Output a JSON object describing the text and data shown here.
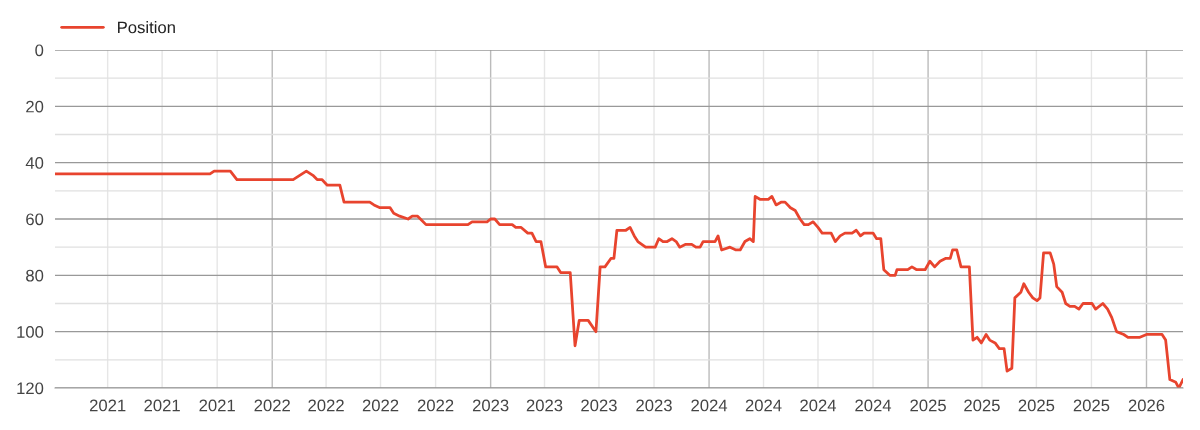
{
  "chart_data": {
    "type": "line",
    "legend": "top left",
    "grid": true,
    "xlim": [
      "2021-01-03",
      "2026-03-03"
    ],
    "xticks": [
      {
        "value": "2021-04-01",
        "label": "2021"
      },
      {
        "value": "2021-07-01",
        "label": "2021"
      },
      {
        "value": "2021-10-01",
        "label": "2021"
      },
      {
        "value": "2022-01-01",
        "label": "2022"
      },
      {
        "value": "2022-04-01",
        "label": "2022"
      },
      {
        "value": "2022-07-01",
        "label": "2022"
      },
      {
        "value": "2022-10-01",
        "label": "2022"
      },
      {
        "value": "2023-01-01",
        "label": "2023"
      },
      {
        "value": "2023-04-01",
        "label": "2023"
      },
      {
        "value": "2023-07-01",
        "label": "2023"
      },
      {
        "value": "2023-10-01",
        "label": "2023"
      },
      {
        "value": "2024-01-01",
        "label": "2024"
      },
      {
        "value": "2024-04-01",
        "label": "2024"
      },
      {
        "value": "2024-07-01",
        "label": "2024"
      },
      {
        "value": "2024-10-01",
        "label": "2024"
      },
      {
        "value": "2025-01-01",
        "label": "2025"
      },
      {
        "value": "2025-04-01",
        "label": "2025"
      },
      {
        "value": "2025-07-01",
        "label": "2025"
      },
      {
        "value": "2025-10-01",
        "label": "2025"
      },
      {
        "value": "2026-01-01",
        "label": "2026"
      }
    ],
    "ylim": [
      120,
      0
    ],
    "yticks": [
      0,
      {
        "value": 10,
        "label": null
      },
      20,
      {
        "value": 30,
        "label": null
      },
      40,
      {
        "value": 50,
        "label": null
      },
      60,
      {
        "value": 70,
        "label": null
      },
      80,
      {
        "value": 90,
        "label": null
      },
      100,
      {
        "value": 110,
        "label": null
      },
      120
    ],
    "series": [
      {
        "name": "Position",
        "color": "#e8442e",
        "x": [
          "2021-01-03",
          "2021-09-19",
          "2021-09-26",
          "2021-10-23",
          "2021-11-03",
          "2022-02-05",
          "2022-02-27",
          "2022-03-10",
          "2022-03-17",
          "2022-03-25",
          "2022-04-03",
          "2022-04-24",
          "2022-05-01",
          "2022-06-13",
          "2022-06-20",
          "2022-06-30",
          "2022-07-17",
          "2022-07-23",
          "2022-08-02",
          "2022-08-16",
          "2022-08-23",
          "2022-09-01",
          "2022-09-15",
          "2022-11-24",
          "2022-12-01",
          "2022-12-26",
          "2023-01-01",
          "2023-01-08",
          "2023-01-16",
          "2023-02-06",
          "2023-02-12",
          "2023-02-21",
          "2023-03-04",
          "2023-03-11",
          "2023-03-18",
          "2023-03-26",
          "2023-04-03",
          "2023-04-22",
          "2023-04-28",
          "2023-05-14",
          "2023-05-22",
          "2023-05-29",
          "2023-06-13",
          "2023-06-26",
          "2023-07-03",
          "2023-07-11",
          "2023-07-21",
          "2023-07-26",
          "2023-07-31",
          "2023-08-15",
          "2023-08-22",
          "2023-08-29",
          "2023-09-04",
          "2023-09-17",
          "2023-10-03",
          "2023-10-09",
          "2023-10-16",
          "2023-10-23",
          "2023-10-31",
          "2023-11-07",
          "2023-11-13",
          "2023-11-23",
          "2023-12-03",
          "2023-12-10",
          "2023-12-17",
          "2023-12-22",
          "2024-01-11",
          "2024-01-16",
          "2024-01-22",
          "2024-02-05",
          "2024-02-15",
          "2024-02-22",
          "2024-03-01",
          "2024-03-09",
          "2024-03-15",
          "2024-03-18",
          "2024-03-26",
          "2024-04-09",
          "2024-04-15",
          "2024-04-22",
          "2024-05-01",
          "2024-05-07",
          "2024-05-16",
          "2024-05-24",
          "2024-06-01",
          "2024-06-08",
          "2024-06-15",
          "2024-06-23",
          "2024-07-01",
          "2024-07-08",
          "2024-07-23",
          "2024-07-30",
          "2024-08-07",
          "2024-08-15",
          "2024-08-27",
          "2024-09-03",
          "2024-09-10",
          "2024-09-16",
          "2024-10-01",
          "2024-10-07",
          "2024-10-14",
          "2024-10-19",
          "2024-10-29",
          "2024-11-07",
          "2024-11-10",
          "2024-11-28",
          "2024-12-05",
          "2024-12-13",
          "2024-12-27",
          "2025-01-04",
          "2025-01-12",
          "2025-01-21",
          "2025-01-30",
          "2025-02-07",
          "2025-02-11",
          "2025-02-18",
          "2025-02-25",
          "2025-03-11",
          "2025-03-17",
          "2025-03-24",
          "2025-03-31",
          "2025-04-08",
          "2025-04-14",
          "2025-04-23",
          "2025-04-30",
          "2025-05-08",
          "2025-05-13",
          "2025-05-21",
          "2025-05-26",
          "2025-06-05",
          "2025-06-10",
          "2025-06-18",
          "2025-06-25",
          "2025-07-02",
          "2025-07-07",
          "2025-07-13",
          "2025-07-24",
          "2025-07-30",
          "2025-08-04",
          "2025-08-13",
          "2025-08-19",
          "2025-08-26",
          "2025-09-03",
          "2025-09-10",
          "2025-09-17",
          "2025-10-02",
          "2025-10-08",
          "2025-10-20",
          "2025-10-28",
          "2025-11-04",
          "2025-11-12",
          "2025-11-24",
          "2025-12-01",
          "2025-12-21",
          "2026-01-01",
          "2026-01-27",
          "2026-02-02",
          "2026-02-09",
          "2026-02-19",
          "2026-02-24",
          "2026-03-03"
        ],
        "values": [
          44,
          44,
          43,
          43,
          46,
          46,
          43,
          44.5,
          46,
          46,
          48,
          48,
          54,
          54,
          55,
          56,
          56,
          58,
          59,
          60,
          59,
          59,
          62,
          62,
          61,
          61,
          60,
          60,
          62,
          62,
          63,
          63,
          65,
          65,
          68,
          68,
          77,
          77,
          79,
          79,
          105,
          96,
          96,
          100,
          77,
          77,
          74,
          74,
          64,
          64,
          63,
          66,
          68,
          70,
          70,
          67,
          68,
          68,
          67,
          68,
          70,
          69,
          69,
          70,
          70,
          68,
          68,
          66,
          71,
          70,
          71,
          71,
          68,
          67,
          68,
          52,
          53,
          53,
          52,
          55,
          54,
          54,
          56,
          57,
          60,
          62,
          62,
          61,
          63,
          65,
          65,
          68,
          66,
          65,
          65,
          64,
          66,
          65,
          65,
          67,
          67,
          78,
          80,
          80,
          78,
          78,
          77,
          78,
          78,
          75,
          77,
          75,
          74,
          74,
          71,
          71,
          77,
          77,
          103,
          102,
          104,
          101,
          103,
          104,
          106,
          106,
          114,
          113,
          88,
          86,
          83,
          86,
          88,
          89,
          88,
          72,
          72,
          76,
          84,
          86,
          90,
          91,
          91,
          92,
          90,
          90,
          92,
          90,
          92,
          95,
          100,
          101,
          102,
          102,
          101,
          101,
          103,
          117,
          118,
          120,
          117
        ]
      }
    ]
  }
}
